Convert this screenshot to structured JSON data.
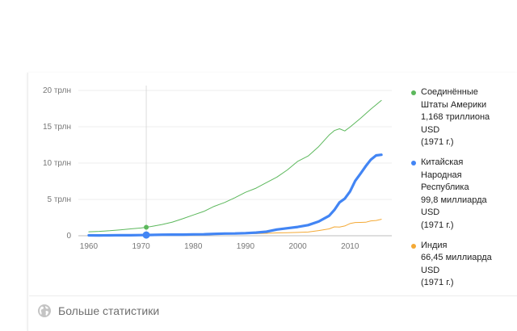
{
  "chart_data": {
    "type": "line",
    "x_ticks": [
      "1960",
      "1970",
      "1980",
      "1990",
      "2000",
      "2010"
    ],
    "y_ticks": [
      "0",
      "5 трлн",
      "10 трлн",
      "15 трлн",
      "20 трлн"
    ],
    "xlim": [
      1958,
      2018
    ],
    "ylim": [
      0,
      20
    ],
    "grid": true,
    "highlight_year": 1971,
    "legend_position": "right",
    "series": [
      {
        "name": "Соединённые Штаты Америки",
        "color": "#5cb85c",
        "stroke": "thin",
        "legend_text": "Соединённые\nШтаты Америки\n1,168 триллиона\nUSD\n(1971 г.)",
        "x": [
          1960,
          1962,
          1964,
          1966,
          1968,
          1970,
          1971,
          1972,
          1974,
          1976,
          1978,
          1980,
          1982,
          1984,
          1986,
          1988,
          1990,
          1992,
          1994,
          1996,
          1998,
          2000,
          2002,
          2004,
          2006,
          2007,
          2008,
          2009,
          2010,
          2012,
          2014,
          2016
        ],
        "values": [
          0.54,
          0.6,
          0.69,
          0.81,
          0.94,
          1.07,
          1.17,
          1.28,
          1.55,
          1.88,
          2.35,
          2.86,
          3.34,
          4.04,
          4.58,
          5.24,
          5.98,
          6.54,
          7.31,
          8.07,
          9.06,
          10.25,
          10.98,
          12.27,
          13.86,
          14.48,
          14.72,
          14.42,
          14.96,
          16.16,
          17.43,
          18.62
        ]
      },
      {
        "name": "Китайская Народная Республика",
        "color": "#4285f4",
        "stroke": "thick",
        "legend_text": "Китайская\nНародная\nРеспублика\n99,8 миллиарда\nUSD\n(1971 г.)",
        "x": [
          1960,
          1962,
          1964,
          1966,
          1968,
          1970,
          1971,
          1972,
          1974,
          1976,
          1978,
          1980,
          1982,
          1984,
          1986,
          1988,
          1990,
          1992,
          1994,
          1996,
          1998,
          2000,
          2002,
          2004,
          2006,
          2007,
          2008,
          2009,
          2010,
          2011,
          2012,
          2013,
          2014,
          2015,
          2016
        ],
        "values": [
          0.06,
          0.05,
          0.06,
          0.08,
          0.07,
          0.09,
          0.1,
          0.11,
          0.14,
          0.15,
          0.15,
          0.19,
          0.2,
          0.26,
          0.3,
          0.31,
          0.36,
          0.43,
          0.56,
          0.86,
          1.03,
          1.21,
          1.47,
          1.96,
          2.75,
          3.55,
          4.59,
          5.1,
          6.09,
          7.55,
          8.53,
          9.57,
          10.48,
          11.06,
          11.14
        ]
      },
      {
        "name": "Индия",
        "color": "#f4a935",
        "stroke": "thin",
        "legend_text": "Индия\n66,45 миллиарда\nUSD\n(1971 г.)",
        "x": [
          1960,
          1962,
          1964,
          1966,
          1968,
          1970,
          1971,
          1972,
          1974,
          1976,
          1978,
          1980,
          1982,
          1984,
          1986,
          1988,
          1990,
          1992,
          1994,
          1996,
          1998,
          2000,
          2002,
          2004,
          2006,
          2007,
          2008,
          2009,
          2010,
          2011,
          2012,
          2013,
          2014,
          2015,
          2016
        ],
        "values": [
          0.04,
          0.04,
          0.05,
          0.05,
          0.05,
          0.06,
          0.07,
          0.07,
          0.1,
          0.1,
          0.14,
          0.19,
          0.2,
          0.21,
          0.25,
          0.3,
          0.33,
          0.29,
          0.33,
          0.39,
          0.42,
          0.46,
          0.51,
          0.71,
          0.94,
          1.22,
          1.2,
          1.34,
          1.68,
          1.82,
          1.83,
          1.86,
          2.04,
          2.1,
          2.27
        ]
      }
    ]
  },
  "footer": {
    "more_stats_label": "Больше статистики",
    "globe_icon": "globe-icon"
  }
}
